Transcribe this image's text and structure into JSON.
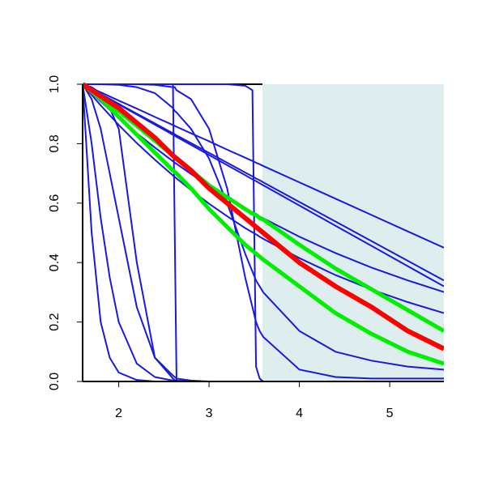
{
  "chart_data": {
    "type": "line",
    "x": [
      1.6,
      1.7,
      1.8,
      1.9,
      2.0,
      2.2,
      2.4,
      2.6,
      2.62,
      2.64,
      2.8,
      3.0,
      3.2,
      3.4,
      3.48,
      3.52,
      3.56,
      3.6,
      4.0,
      4.4,
      4.8,
      5.2,
      5.6
    ],
    "xlim": [
      1.6,
      5.6
    ],
    "ylim": [
      0,
      1
    ],
    "xticks": [
      2,
      3,
      4,
      5
    ],
    "yticks": [
      {
        "value": 0,
        "label": "0.0"
      },
      {
        "value": 0.2,
        "label": "0.2"
      },
      {
        "value": 0.4,
        "label": "0.4"
      },
      {
        "value": 0.6,
        "label": "0.6"
      },
      {
        "value": 0.8,
        "label": "0.8"
      },
      {
        "value": 1,
        "label": "1.0"
      }
    ],
    "shaded_xlim": [
      3.59,
      5.6
    ],
    "shade_color": "#deeded",
    "series": [
      {
        "color": "#1a1adb",
        "width": 2,
        "values": [
          1,
          0.986,
          0.973,
          0.959,
          0.945,
          0.918,
          0.89,
          0.863,
          0.86,
          0.857,
          0.835,
          0.808,
          0.78,
          0.753,
          0.742,
          0.736,
          0.731,
          0.725,
          0.67,
          0.615,
          0.56,
          0.505,
          0.45
        ]
      },
      {
        "color": "#1a1adb",
        "width": 2,
        "values": [
          1,
          0.984,
          0.967,
          0.951,
          0.934,
          0.901,
          0.868,
          0.835,
          0.832,
          0.828,
          0.802,
          0.769,
          0.736,
          0.703,
          0.69,
          0.683,
          0.677,
          0.67,
          0.604,
          0.538,
          0.472,
          0.406,
          0.34
        ]
      },
      {
        "color": "#1a1adb",
        "width": 2,
        "values": [
          1,
          0.983,
          0.966,
          0.949,
          0.932,
          0.898,
          0.864,
          0.83,
          0.827,
          0.823,
          0.796,
          0.762,
          0.728,
          0.694,
          0.68,
          0.674,
          0.667,
          0.66,
          0.592,
          0.524,
          0.456,
          0.388,
          0.32
        ]
      },
      {
        "color": "#1a1adb",
        "width": 2,
        "values": [
          1,
          0.97,
          0.942,
          0.914,
          0.887,
          0.835,
          0.787,
          0.741,
          0.736,
          0.732,
          0.698,
          0.657,
          0.619,
          0.583,
          0.569,
          0.562,
          0.555,
          0.549,
          0.487,
          0.432,
          0.383,
          0.34,
          0.301
        ]
      },
      {
        "color": "#1a1adb",
        "width": 2,
        "values": [
          1,
          0.964,
          0.929,
          0.896,
          0.863,
          0.802,
          0.746,
          0.693,
          0.688,
          0.683,
          0.644,
          0.598,
          0.556,
          0.516,
          0.502,
          0.495,
          0.487,
          0.48,
          0.415,
          0.358,
          0.309,
          0.267,
          0.23
        ]
      },
      {
        "color": "#1a1adb",
        "width": 2,
        "values": [
          1,
          1,
          1,
          0.999,
          0.998,
          0.99,
          0.97,
          0.92,
          0.91,
          0.905,
          0.85,
          0.75,
          0.6,
          0.43,
          0.37,
          0.34,
          0.32,
          0.3,
          0.17,
          0.1,
          0.07,
          0.05,
          0.04
        ]
      },
      {
        "color": "#1a1adb",
        "width": 2,
        "values": [
          1,
          1,
          1,
          1,
          1,
          1,
          0.998,
          0.99,
          0.99,
          0.98,
          0.95,
          0.85,
          0.65,
          0.35,
          0.25,
          0.2,
          0.17,
          0.15,
          0.04,
          0.015,
          0.01,
          0.01,
          0.01
        ]
      },
      {
        "color": "#1a1adb",
        "width": 2,
        "values": [
          1,
          1,
          1,
          1,
          1,
          1,
          1,
          1,
          1,
          1,
          1,
          1,
          1,
          0.995,
          0.98,
          0.05,
          0.01,
          0,
          0,
          0,
          0,
          0,
          0
        ]
      },
      {
        "color": "#1a1adb",
        "width": 2,
        "values": [
          1,
          1,
          1,
          1,
          1,
          1,
          1,
          1,
          0.5,
          0,
          0,
          0,
          0,
          0,
          0,
          0,
          0,
          0,
          0,
          0,
          0,
          0,
          0
        ]
      },
      {
        "color": "#1a1adb",
        "width": 2,
        "values": [
          1,
          0.5,
          0.2,
          0.08,
          0.03,
          0.005,
          0,
          0,
          0,
          0,
          0,
          0,
          0,
          0,
          0,
          0,
          0,
          0,
          0,
          0,
          0,
          0,
          0
        ]
      },
      {
        "color": "#1a1adb",
        "width": 2,
        "values": [
          1,
          0.8,
          0.55,
          0.35,
          0.2,
          0.06,
          0.015,
          0.003,
          0,
          0,
          0,
          0,
          0,
          0,
          0,
          0,
          0,
          0,
          0,
          0,
          0,
          0,
          0
        ]
      },
      {
        "color": "#1a1adb",
        "width": 2,
        "values": [
          1,
          0.95,
          0.85,
          0.7,
          0.55,
          0.25,
          0.08,
          0.02,
          0.015,
          0.01,
          0.003,
          0,
          0,
          0,
          0,
          0,
          0,
          0,
          0,
          0,
          0,
          0,
          0
        ]
      },
      {
        "color": "#1a1adb",
        "width": 2,
        "values": [
          1,
          0.99,
          0.97,
          0.92,
          0.85,
          0.4,
          0.08,
          0.01,
          0.005,
          0.003,
          0,
          0,
          0,
          0,
          0,
          0,
          0,
          0,
          0,
          0,
          0,
          0,
          0
        ]
      },
      {
        "color": "#00ee00",
        "width": 5,
        "values": [
          1,
          0.98,
          0.96,
          0.935,
          0.91,
          0.86,
          0.81,
          0.76,
          0.755,
          0.75,
          0.71,
          0.66,
          0.62,
          0.58,
          0.565,
          0.56,
          0.55,
          0.545,
          0.46,
          0.38,
          0.31,
          0.24,
          0.17
        ]
      },
      {
        "color": "#00ee00",
        "width": 5,
        "values": [
          1,
          0.975,
          0.95,
          0.92,
          0.89,
          0.83,
          0.77,
          0.71,
          0.705,
          0.7,
          0.65,
          0.58,
          0.52,
          0.46,
          0.44,
          0.43,
          0.42,
          0.41,
          0.32,
          0.23,
          0.16,
          0.1,
          0.06
        ]
      },
      {
        "color": "#ff0000",
        "width": 6,
        "values": [
          1,
          0.98,
          0.96,
          0.94,
          0.92,
          0.87,
          0.82,
          0.76,
          0.755,
          0.75,
          0.71,
          0.65,
          0.6,
          0.55,
          0.53,
          0.52,
          0.51,
          0.5,
          0.4,
          0.32,
          0.25,
          0.17,
          0.11
        ]
      }
    ]
  }
}
